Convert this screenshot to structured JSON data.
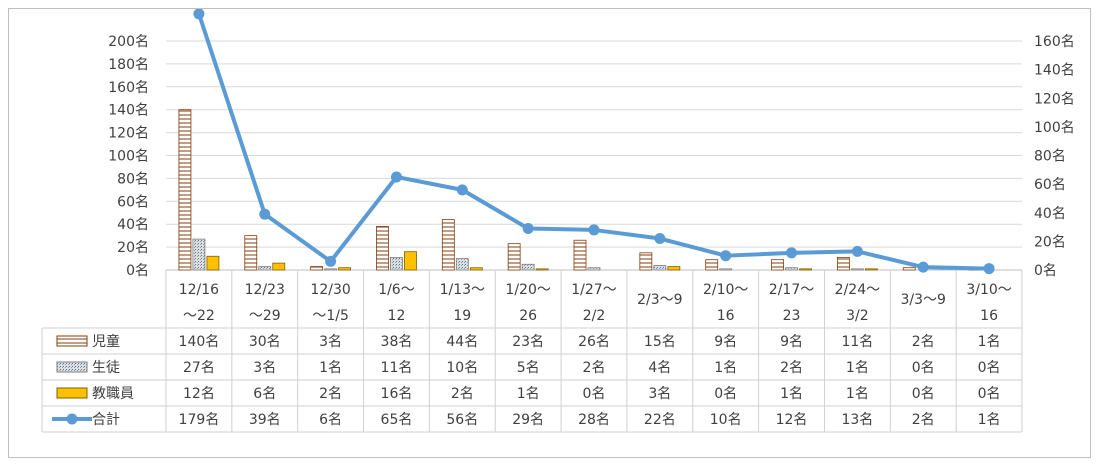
{
  "chart_data": {
    "type": "bar",
    "title": "",
    "categories": [
      [
        "12/16",
        "～22"
      ],
      [
        "12/23",
        "～29"
      ],
      [
        "12/30",
        "～1/5"
      ],
      [
        "1/6～",
        "12"
      ],
      [
        "1/13～",
        "19"
      ],
      [
        "1/20～",
        "26"
      ],
      [
        "1/27～",
        "2/2"
      ],
      [
        "2/3～9"
      ],
      [
        "2/10～",
        "16"
      ],
      [
        "2/17～",
        "23"
      ],
      [
        "2/24～",
        "3/2"
      ],
      [
        "3/3～9"
      ],
      [
        "3/10～",
        "16"
      ]
    ],
    "series": [
      {
        "name": "児童",
        "type": "bar",
        "axis": "left",
        "values": [
          140,
          30,
          3,
          38,
          44,
          23,
          26,
          15,
          9,
          9,
          11,
          2,
          1
        ],
        "labels": [
          "140名",
          "30名",
          "3名",
          "38名",
          "44名",
          "23名",
          "26名",
          "15名",
          "9名",
          "9名",
          "11名",
          "2名",
          "1名"
        ],
        "pattern": "horizontal-stripes-brown"
      },
      {
        "name": "生徒",
        "type": "bar",
        "axis": "left",
        "values": [
          27,
          3,
          1,
          11,
          10,
          5,
          2,
          4,
          1,
          2,
          1,
          0,
          0
        ],
        "labels": [
          "27名",
          "3名",
          "1名",
          "11名",
          "10名",
          "5名",
          "2名",
          "4名",
          "1名",
          "2名",
          "1名",
          "0名",
          "0名"
        ],
        "pattern": "dotted-gray"
      },
      {
        "name": "教職員",
        "type": "bar",
        "axis": "left",
        "values": [
          12,
          6,
          2,
          16,
          2,
          1,
          0,
          3,
          0,
          1,
          1,
          0,
          0
        ],
        "labels": [
          "12名",
          "6名",
          "2名",
          "16名",
          "2名",
          "1名",
          "0名",
          "3名",
          "0名",
          "1名",
          "1名",
          "0名",
          "0名"
        ],
        "color": "#ffc000"
      },
      {
        "name": "合計",
        "type": "line",
        "axis": "right",
        "values": [
          179,
          39,
          6,
          65,
          56,
          29,
          28,
          22,
          10,
          12,
          13,
          2,
          1
        ],
        "labels": [
          "179名",
          "39名",
          "6名",
          "65名",
          "56名",
          "29名",
          "28名",
          "22名",
          "10名",
          "12名",
          "13名",
          "2名",
          "1名"
        ],
        "color": "#5b9bd5"
      }
    ],
    "left_axis": {
      "ylim": [
        0,
        200
      ],
      "ticks": [
        "0名",
        "20名",
        "40名",
        "60名",
        "80名",
        "100名",
        "120名",
        "140名",
        "160名",
        "180名",
        "200名"
      ]
    },
    "right_axis": {
      "ylim": [
        0,
        160
      ],
      "ticks": [
        "0名",
        "20名",
        "40名",
        "60名",
        "80名",
        "100名",
        "120名",
        "140名",
        "160名"
      ]
    },
    "grid": true,
    "legend": "data-table",
    "bar_outline": "#843c0c"
  }
}
